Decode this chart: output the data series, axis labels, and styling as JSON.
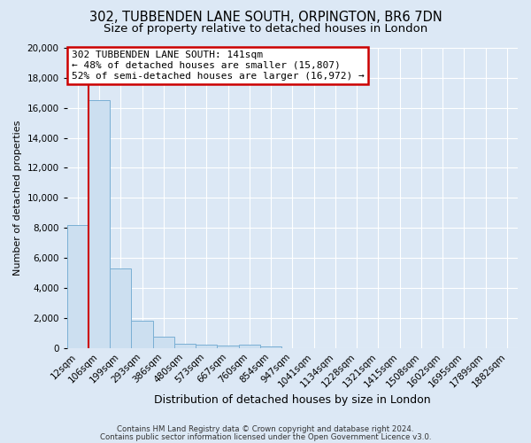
{
  "title1": "302, TUBBENDEN LANE SOUTH, ORPINGTON, BR6 7DN",
  "title2": "Size of property relative to detached houses in London",
  "xlabel": "Distribution of detached houses by size in London",
  "ylabel": "Number of detached properties",
  "bar_labels": [
    "12sqm",
    "106sqm",
    "199sqm",
    "293sqm",
    "386sqm",
    "480sqm",
    "573sqm",
    "667sqm",
    "760sqm",
    "854sqm",
    "947sqm",
    "1041sqm",
    "1134sqm",
    "1228sqm",
    "1321sqm",
    "1415sqm",
    "1508sqm",
    "1602sqm",
    "1695sqm",
    "1789sqm",
    "1882sqm"
  ],
  "bar_values": [
    8200,
    16500,
    5300,
    1800,
    750,
    270,
    220,
    150,
    200,
    100,
    0,
    0,
    0,
    0,
    0,
    0,
    0,
    0,
    0,
    0,
    0
  ],
  "bar_color": "#ccdff0",
  "bar_edge_color": "#7aafd4",
  "vline_color": "#cc0000",
  "annotation_title": "302 TUBBENDEN LANE SOUTH: 141sqm",
  "annotation_line1": "← 48% of detached houses are smaller (15,807)",
  "annotation_line2": "52% of semi-detached houses are larger (16,972) →",
  "annotation_box_color": "#ffffff",
  "annotation_box_edge": "#cc0000",
  "ylim": [
    0,
    20000
  ],
  "yticks": [
    0,
    2000,
    4000,
    6000,
    8000,
    10000,
    12000,
    14000,
    16000,
    18000,
    20000
  ],
  "footer1": "Contains HM Land Registry data © Crown copyright and database right 2024.",
  "footer2": "Contains public sector information licensed under the Open Government Licence v3.0.",
  "bg_color": "#dce8f5",
  "plot_bg_color": "#dce8f5",
  "grid_color": "#ffffff",
  "title_fontsize": 10.5,
  "subtitle_fontsize": 9.5,
  "xlabel_fontsize": 9,
  "ylabel_fontsize": 8,
  "tick_fontsize": 7.5,
  "annot_fontsize": 8
}
